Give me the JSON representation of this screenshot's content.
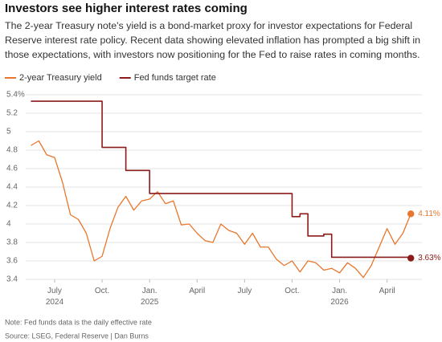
{
  "chart_data": {
    "type": "line",
    "title": "Investors see higher interest rates coming",
    "subtitle": "The 2-year Treasury note's yield is a bond-market proxy for investor expectations for Federal Reserve interest rate policy. Recent data showing elevated inflation has prompted a big shift in those expectations, with investors now positioning for the Fed to raise rates in coming months.",
    "categories": [
      null,
      null,
      null,
      "July 2024",
      null,
      null,
      null,
      null,
      null,
      "Oct.",
      null,
      null,
      null,
      null,
      null,
      "Jan. 2025",
      null,
      null,
      null,
      null,
      null,
      "April",
      null,
      null,
      null,
      null,
      null,
      "July",
      null,
      null,
      null,
      null,
      null,
      "Oct.",
      null,
      null,
      null,
      null,
      null,
      "Jan. 2026",
      null,
      null,
      null,
      null,
      null,
      "April",
      null,
      null,
      null
    ],
    "series": [
      {
        "name": "2-year Treasury yield",
        "color": "#e8762c",
        "step": false,
        "values": [
          4.85,
          4.9,
          4.75,
          4.72,
          4.45,
          4.1,
          4.05,
          3.9,
          3.6,
          3.65,
          3.95,
          4.18,
          4.3,
          4.15,
          4.25,
          4.27,
          4.35,
          4.22,
          4.25,
          3.99,
          4.0,
          3.9,
          3.82,
          3.8,
          4.0,
          3.93,
          3.9,
          3.78,
          3.9,
          3.75,
          3.75,
          3.62,
          3.55,
          3.6,
          3.48,
          3.6,
          3.58,
          3.5,
          3.52,
          3.47,
          3.58,
          3.52,
          3.42,
          3.55,
          3.75,
          3.95,
          3.78,
          3.9,
          4.11
        ],
        "value_labels": [
          null,
          null,
          null,
          null,
          null,
          null,
          null,
          null,
          null,
          null,
          null,
          null,
          null,
          null,
          null,
          null,
          null,
          null,
          null,
          null,
          null,
          null,
          null,
          null,
          null,
          null,
          null,
          null,
          null,
          null,
          null,
          null,
          null,
          null,
          null,
          null,
          null,
          null,
          null,
          null,
          null,
          null,
          null,
          null,
          null,
          null,
          null,
          null,
          "4.11%"
        ]
      },
      {
        "name": "Fed funds target rate",
        "color": "#8b1a1a",
        "step": true,
        "values": [
          5.33,
          5.33,
          5.33,
          5.33,
          5.33,
          5.33,
          5.33,
          5.33,
          5.33,
          4.83,
          4.83,
          4.83,
          4.58,
          4.58,
          4.58,
          4.33,
          4.33,
          4.33,
          4.33,
          4.33,
          4.33,
          4.33,
          4.33,
          4.33,
          4.33,
          4.33,
          4.33,
          4.33,
          4.33,
          4.33,
          4.33,
          4.33,
          4.33,
          4.08,
          4.11,
          3.87,
          3.87,
          3.89,
          3.64,
          3.64,
          3.64,
          3.64,
          3.64,
          3.64,
          3.64,
          3.64,
          3.64,
          3.64,
          3.63
        ],
        "value_labels": [
          null,
          null,
          null,
          null,
          null,
          null,
          null,
          null,
          null,
          null,
          null,
          null,
          null,
          null,
          null,
          null,
          null,
          null,
          null,
          null,
          null,
          null,
          null,
          null,
          null,
          null,
          null,
          null,
          null,
          null,
          null,
          null,
          null,
          null,
          null,
          null,
          null,
          null,
          null,
          null,
          null,
          null,
          null,
          null,
          null,
          null,
          null,
          null,
          "3.63%"
        ]
      }
    ],
    "ylim": [
      3.4,
      5.4
    ],
    "yticks": [
      3.4,
      3.6,
      3.8,
      4,
      4.2,
      4.4,
      4.6,
      4.8,
      5,
      5.2,
      {
        "value": 5.4,
        "label": "5.4%"
      }
    ],
    "grid": true,
    "legend": "top-left",
    "note": "Note: Fed funds data is the daily effective rate",
    "source": "Source: LSEG, Federal Reserve | Dan Burns"
  }
}
